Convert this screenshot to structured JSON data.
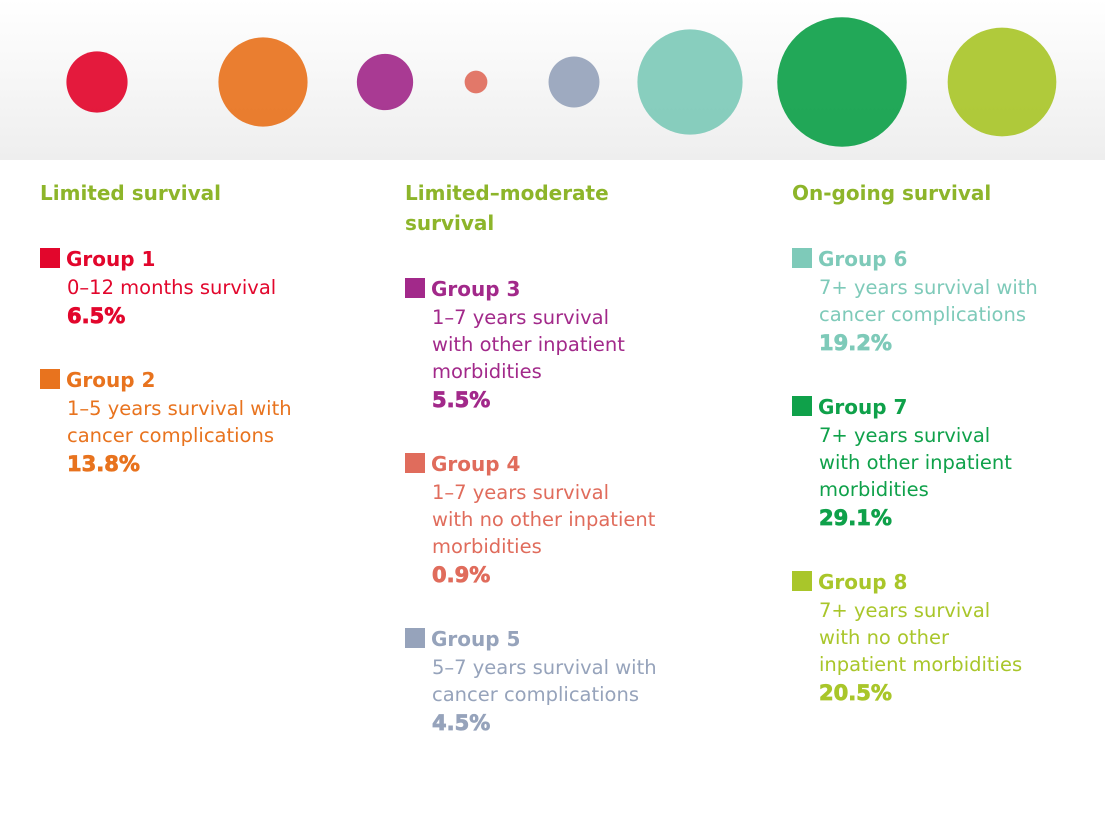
{
  "chart_data": {
    "type": "bubble",
    "columns": [
      {
        "title": "Limited survival",
        "groups": [
          {
            "name": "Group 1",
            "lines": [
              "0–12 months survival"
            ],
            "value": 6.5,
            "value_label": "6.5%",
            "color": "#e2062c"
          },
          {
            "name": "Group 2",
            "lines": [
              "1–5 years survival with",
              "cancer complications"
            ],
            "value": 13.8,
            "value_label": "13.8%",
            "color": "#e8731e"
          }
        ]
      },
      {
        "title": "Limited–moderate survival",
        "groups": [
          {
            "name": "Group 3",
            "lines": [
              "1–7 years survival",
              "with other inpatient",
              "morbidities"
            ],
            "value": 5.5,
            "value_label": "5.5%",
            "color": "#a2298a"
          },
          {
            "name": "Group 4",
            "lines": [
              "1–7 years survival",
              "with no other inpatient",
              "morbidities"
            ],
            "value": 0.9,
            "value_label": "0.9%",
            "color": "#e06c5c"
          },
          {
            "name": "Group 5",
            "lines": [
              "5–7 years survival with",
              "cancer complications"
            ],
            "value": 4.5,
            "value_label": "4.5%",
            "color": "#96a3bb"
          }
        ]
      },
      {
        "title": "On-going survival",
        "groups": [
          {
            "name": "Group 6",
            "lines": [
              "7+ years survival with",
              "cancer complications"
            ],
            "value": 19.2,
            "value_label": "19.2%",
            "color": "#7ecab9"
          },
          {
            "name": "Group 7",
            "lines": [
              "7+ years survival",
              "with other inpatient",
              "morbidities"
            ],
            "value": 29.1,
            "value_label": "29.1%",
            "color": "#0fa14a"
          },
          {
            "name": "Group 8",
            "lines": [
              "7+ years survival",
              "with no other",
              "inpatient morbidities"
            ],
            "value": 20.5,
            "value_label": "20.5%",
            "color": "#a9c62a"
          }
        ]
      }
    ]
  }
}
